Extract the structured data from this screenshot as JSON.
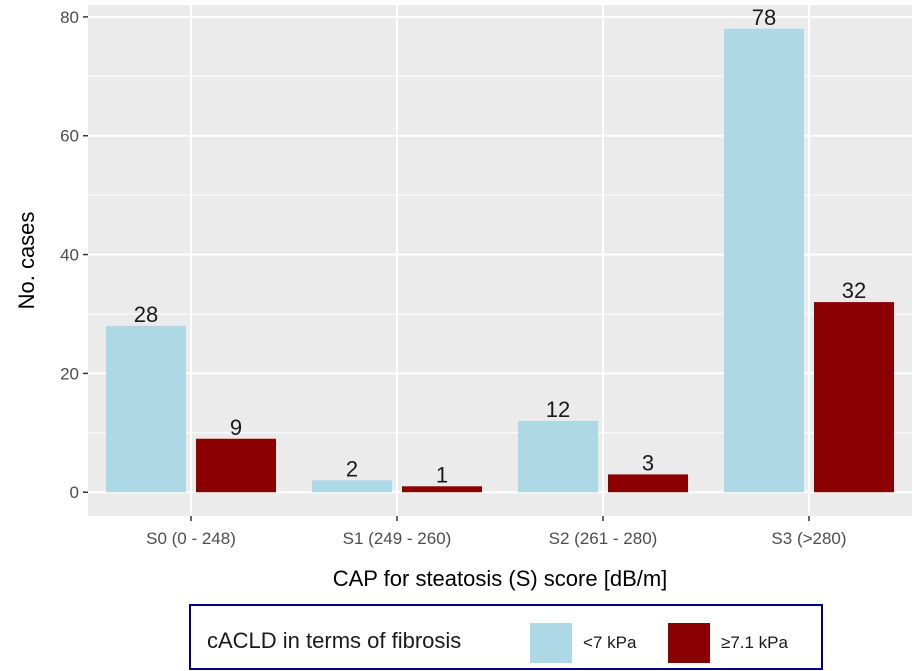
{
  "chart_data": {
    "type": "bar",
    "categories": [
      "S0 (0 - 248)",
      "S1 (249 - 260)",
      "S2 (261 - 280)",
      "S3 (>280)"
    ],
    "series": [
      {
        "name": "<7 kPa",
        "values": [
          28,
          2,
          12,
          78
        ],
        "color": "#add8e6"
      },
      {
        "name": "≥7.1 kPa",
        "values": [
          9,
          1,
          3,
          32
        ],
        "color": "#8b0000"
      }
    ],
    "data_labels": [
      "28",
      "9",
      "2",
      "1",
      "12",
      "3",
      "78",
      "32"
    ],
    "xlabel": "CAP for steatosis (S) score [dB/m]",
    "ylabel": "No. cases",
    "ylim": [
      -4,
      82
    ],
    "yticks": [
      0,
      20,
      40,
      60,
      80
    ],
    "ytick_labels": [
      "0",
      "20",
      "40",
      "60",
      "80"
    ],
    "legend": {
      "title": "cACLD in terms of fibrosis",
      "position": "bottom",
      "border_color": "#00008b"
    },
    "grid": true,
    "panel_color": "#ebebeb"
  }
}
